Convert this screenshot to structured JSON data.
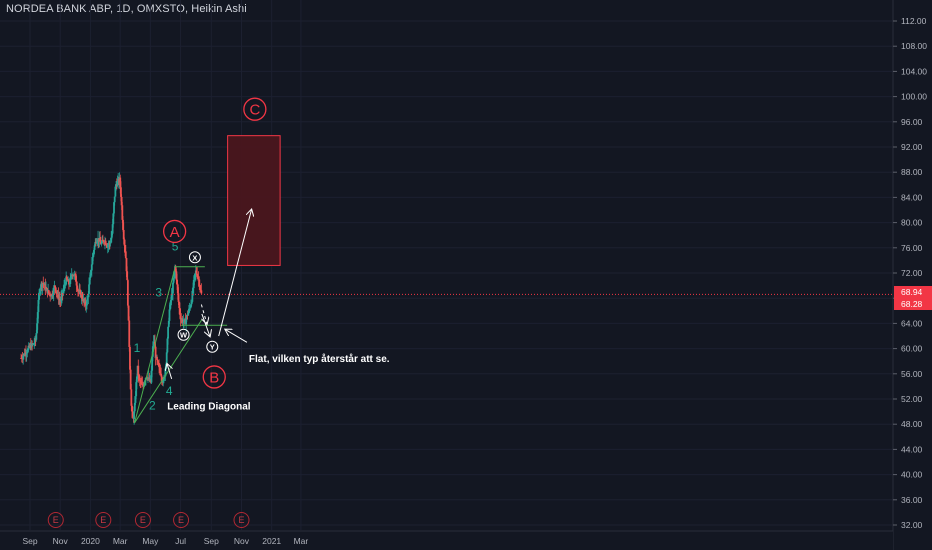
{
  "header": {
    "symbol_text": "NORDEA BANK ABP, 1D, OMXSTO, Heikin Ashi"
  },
  "chart_data": {
    "type": "candlestick",
    "symbol": "NORDEA BANK ABP",
    "interval": "1D",
    "exchange": "OMXSTO",
    "chart_style": "Heikin Ashi",
    "price_axis": {
      "ticks": [
        "112.00",
        "108.00",
        "104.00",
        "100.00",
        "96.00",
        "92.00",
        "88.00",
        "84.00",
        "80.00",
        "76.00",
        "72.00",
        "68.00",
        "64.00",
        "60.00",
        "56.00",
        "52.00",
        "48.00",
        "44.00",
        "40.00",
        "36.00",
        "32.00"
      ],
      "range": [
        31,
        114
      ]
    },
    "time_axis": {
      "ticks": [
        {
          "label": "Sep",
          "days": 0
        },
        {
          "label": "Nov",
          "days": 61
        },
        {
          "label": "2020",
          "days": 122
        },
        {
          "label": "Mar",
          "days": 182
        },
        {
          "label": "May",
          "days": 243
        },
        {
          "label": "Jul",
          "days": 304
        },
        {
          "label": "Sep",
          "days": 366
        },
        {
          "label": "Nov",
          "days": 427
        },
        {
          "label": "2021",
          "days": 488
        },
        {
          "label": "Mar",
          "days": 547
        }
      ]
    },
    "last_price_labels": [
      {
        "value": "68.94",
        "color": "#f23645"
      },
      {
        "value": "68.28",
        "color": "#f23645"
      }
    ],
    "price_path": [
      [
        -18,
        58.5
      ],
      [
        -8,
        59.5
      ],
      [
        0,
        60.3
      ],
      [
        6,
        60.6
      ],
      [
        12,
        61.5
      ],
      [
        16,
        66.5
      ],
      [
        20,
        69.8
      ],
      [
        26,
        70.5
      ],
      [
        32,
        69.5
      ],
      [
        38,
        68.8
      ],
      [
        44,
        68.5
      ],
      [
        50,
        70
      ],
      [
        56,
        68.3
      ],
      [
        62,
        67.5
      ],
      [
        67,
        69.2
      ],
      [
        73,
        71
      ],
      [
        79,
        70.2
      ],
      [
        85,
        72
      ],
      [
        91,
        71.5
      ],
      [
        97,
        69.2
      ],
      [
        103,
        68.5
      ],
      [
        108,
        67.6
      ],
      [
        112,
        66.8
      ],
      [
        116,
        67.8
      ],
      [
        120,
        70.5
      ],
      [
        124,
        73
      ],
      [
        128,
        75.5
      ],
      [
        133,
        77.2
      ],
      [
        138,
        77.4
      ],
      [
        144,
        76.6
      ],
      [
        150,
        77.3
      ],
      [
        156,
        76.4
      ],
      [
        162,
        76.8
      ],
      [
        166,
        78.5
      ],
      [
        170,
        83.5
      ],
      [
        173,
        86
      ],
      [
        177,
        86.4
      ],
      [
        181,
        86.8
      ],
      [
        184,
        84
      ],
      [
        187,
        80
      ],
      [
        190,
        77
      ],
      [
        193,
        75
      ],
      [
        196,
        71
      ],
      [
        199,
        64
      ],
      [
        202,
        56.5
      ],
      [
        205,
        50
      ],
      [
        208,
        48.8
      ],
      [
        211,
        50.2
      ],
      [
        214,
        54
      ],
      [
        217,
        57
      ],
      [
        220,
        55
      ],
      [
        224,
        54.5
      ],
      [
        228,
        53.8
      ],
      [
        232,
        55.2
      ],
      [
        236,
        55.8
      ],
      [
        240,
        55
      ],
      [
        244,
        54.6
      ],
      [
        248,
        60.5
      ],
      [
        251,
        61.2
      ],
      [
        254,
        58.5
      ],
      [
        257,
        57.8
      ],
      [
        260,
        56.8
      ],
      [
        263,
        56.5
      ],
      [
        266,
        55.5
      ],
      [
        269,
        54.5
      ],
      [
        272,
        56
      ],
      [
        275,
        58.3
      ],
      [
        278,
        62
      ],
      [
        281,
        65.8
      ],
      [
        284,
        67.5
      ],
      [
        287,
        69
      ],
      [
        290,
        71
      ],
      [
        293,
        73
      ],
      [
        296,
        71
      ],
      [
        299,
        68
      ],
      [
        302,
        65.8
      ],
      [
        305,
        64.6
      ],
      [
        308,
        64.4
      ],
      [
        311,
        64.2
      ],
      [
        314,
        64.3
      ],
      [
        317,
        65.2
      ],
      [
        320,
        65.9
      ],
      [
        323,
        66.6
      ],
      [
        326,
        67.6
      ],
      [
        329,
        69.5
      ],
      [
        332,
        71.3
      ],
      [
        335,
        72.3
      ],
      [
        338,
        71.6
      ],
      [
        341,
        70.8
      ],
      [
        344,
        69.3
      ],
      [
        347,
        68.3
      ]
    ],
    "wave_labels": [
      {
        "text": "1",
        "days": 216,
        "price": 59.5,
        "color": "#22ab94"
      },
      {
        "text": "2",
        "days": 247,
        "price": 50.3,
        "color": "#22ab94"
      },
      {
        "text": "3",
        "days": 260,
        "price": 68.3,
        "color": "#22ab94"
      },
      {
        "text": "4",
        "days": 281,
        "price": 52.6,
        "color": "#22ab94"
      },
      {
        "text": "5",
        "days": 293,
        "price": 75.6,
        "color": "#22ab94"
      }
    ],
    "circled_labels_large": [
      {
        "text": "A",
        "days": 292,
        "price": 78.6,
        "color": "#f23645"
      },
      {
        "text": "B",
        "days": 372,
        "price": 55.5,
        "color": "#f23645"
      },
      {
        "text": "C",
        "days": 454,
        "price": 98,
        "color": "#f23645"
      }
    ],
    "circled_labels_small": [
      {
        "text": "X",
        "days": 333,
        "price": 74.5
      },
      {
        "text": "W",
        "days": 310,
        "price": 62.2
      },
      {
        "text": "Y",
        "days": 368,
        "price": 60.3
      }
    ],
    "annotations": [
      {
        "text": "Leading Diagonal",
        "days": 277,
        "price": 50.3
      },
      {
        "text": "Flat, vilken typ återstår att se.",
        "days": 442,
        "price": 57.9
      }
    ],
    "trendlines": [
      {
        "from": [
          211,
          48.2
        ],
        "to": [
          292,
          72.6
        ],
        "color": "#4caf50"
      },
      {
        "from": [
          211,
          48.2
        ],
        "to": [
          347,
          64.6
        ],
        "color": "#4caf50"
      },
      {
        "from": [
          291,
          73
        ],
        "to": [
          353,
          73
        ],
        "color": "#4caf50"
      },
      {
        "from": [
          305,
          63.7
        ],
        "to": [
          398,
          63.7
        ],
        "color": "#4caf50"
      }
    ],
    "target_box": {
      "days_start": 399,
      "days_end": 505,
      "price_top": 93.8,
      "price_bottom": 73.2,
      "color": "#f23645"
    },
    "arrows": [
      {
        "from": [
          347,
          65.5
        ],
        "to": [
          363,
          62
        ],
        "style": "solid"
      },
      {
        "from": [
          381,
          62
        ],
        "to": [
          447,
          82
        ],
        "style": "solid"
      },
      {
        "from": [
          438,
          61
        ],
        "to": [
          395,
          63
        ],
        "style": "solid"
      },
      {
        "from": [
          286,
          55.2
        ],
        "to": [
          277,
          57.5
        ],
        "style": "solid"
      },
      {
        "from": [
          346,
          67
        ],
        "to": [
          357,
          64
        ],
        "style": "dashed"
      }
    ],
    "earnings_markers": {
      "label": "E",
      "days": [
        52,
        148,
        228,
        305,
        427
      ]
    }
  }
}
